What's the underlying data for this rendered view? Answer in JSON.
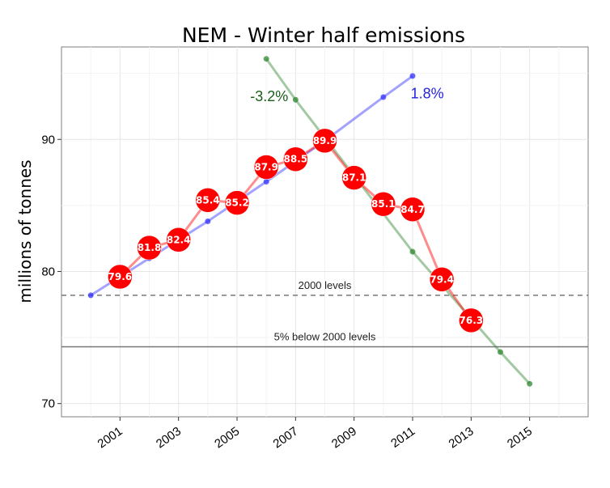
{
  "chart_data": {
    "type": "line",
    "title": "NEM - Winter half emissions",
    "ylabel": "millions of tonnes",
    "xlabel": "",
    "xlim": [
      1999,
      2017
    ],
    "ylim": [
      69,
      97
    ],
    "x_ticks": [
      2001,
      2003,
      2005,
      2007,
      2009,
      2011,
      2013,
      2015
    ],
    "y_ticks": [
      70,
      80,
      90
    ],
    "grid": true,
    "series": [
      {
        "role": "actual",
        "color": "#ff0000",
        "x": [
          2001,
          2002,
          2003,
          2004,
          2005,
          2006,
          2007,
          2008,
          2009,
          2010,
          2011,
          2012,
          2013
        ],
        "values": [
          79.6,
          81.8,
          82.4,
          85.4,
          85.2,
          87.9,
          88.5,
          89.9,
          87.1,
          85.1,
          84.7,
          79.4,
          76.3
        ],
        "labels": [
          "79.6",
          "81.8",
          "82.4",
          "85.4",
          "85.2",
          "87.9",
          "88.5",
          "89.9",
          "87.1",
          "85.1",
          "84.7",
          "79.4",
          "76.3"
        ]
      },
      {
        "role": "rising-trend",
        "color": "#3333ff",
        "x": [
          2000,
          2002,
          2004,
          2006,
          2008,
          2010,
          2011
        ],
        "values": [
          78.2,
          81.0,
          83.8,
          86.8,
          89.9,
          93.2,
          94.8
        ]
      },
      {
        "role": "falling-trend",
        "color": "#338833",
        "x": [
          2006,
          2007,
          2011,
          2014,
          2015
        ],
        "values": [
          96.1,
          93.0,
          81.5,
          73.9,
          71.5
        ]
      }
    ],
    "annotations": [
      {
        "text": "-3.2%",
        "x": 2006.1,
        "y": 92.9,
        "color": "#1a5e1a"
      },
      {
        "text": "1.8%",
        "x": 2011.5,
        "y": 93.1,
        "color": "#2222dd"
      }
    ],
    "reference_lines": [
      {
        "label": "2000 levels",
        "value": 78.2,
        "style": "dashed"
      },
      {
        "label": "5% below 2000 levels",
        "value": 74.3,
        "style": "solid"
      }
    ]
  }
}
